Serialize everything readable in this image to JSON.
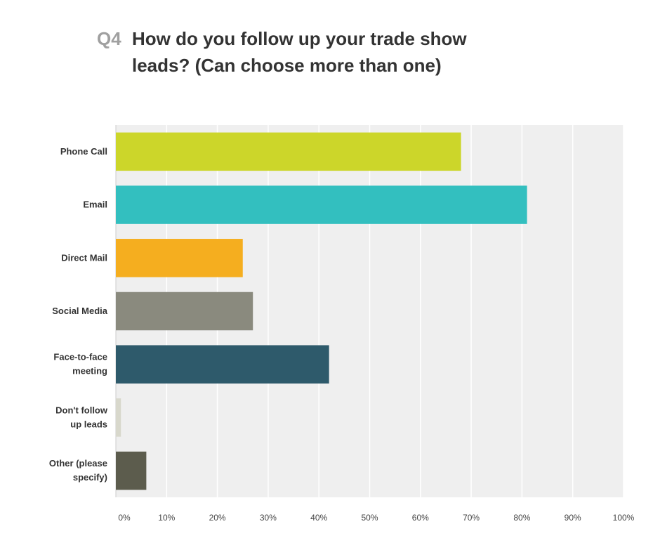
{
  "title": {
    "prefix": "Q4",
    "line1": "How do you follow up your trade show",
    "line2": "leads? (Can choose more than one)"
  },
  "chart_data": {
    "type": "bar",
    "orientation": "horizontal",
    "categories": [
      [
        "Phone Call"
      ],
      [
        "Email"
      ],
      [
        "Direct Mail"
      ],
      [
        "Social Media"
      ],
      [
        "Face-to-face",
        "meeting"
      ],
      [
        "Don't follow",
        "up leads"
      ],
      [
        "Other (please",
        "specify)"
      ]
    ],
    "values": [
      68,
      81,
      25,
      27,
      42,
      1,
      6
    ],
    "colors": [
      "#ccd62a",
      "#33bfbf",
      "#f5ae1f",
      "#8a8a7e",
      "#2e5a6b",
      "#d8d8cc",
      "#5c5c4d"
    ],
    "xlim": [
      0,
      100
    ],
    "xticks": [
      "0%",
      "10%",
      "20%",
      "30%",
      "40%",
      "50%",
      "60%",
      "70%",
      "80%",
      "90%",
      "100%"
    ],
    "grid": true,
    "background": "#efefef",
    "xlabel": "",
    "ylabel": ""
  }
}
